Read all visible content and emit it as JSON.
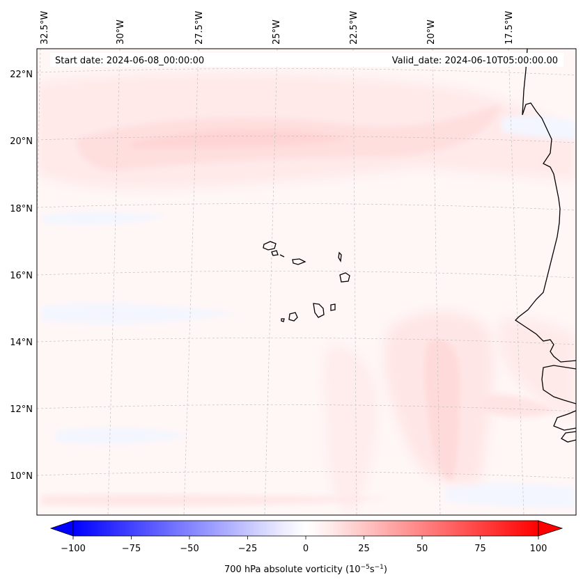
{
  "header": {
    "start_date": "Start date: 2024-06-08_00:00:00",
    "valid_date": "Valid_date: 2024-06-10T05:00:00.00"
  },
  "axes": {
    "lon_ticks": [
      "32.5°W",
      "30°W",
      "27.5°W",
      "25°W",
      "22.5°W",
      "20°W",
      "17.5°W"
    ],
    "lat_ticks": [
      "22°N",
      "20°N",
      "18°N",
      "16°N",
      "14°N",
      "12°N",
      "10°N"
    ]
  },
  "colorbar": {
    "ticks": [
      "−100",
      "−75",
      "−50",
      "−25",
      "0",
      "25",
      "50",
      "75",
      "100"
    ],
    "label_prefix": "700 hPa absolute vorticity (10",
    "label_exp1": "−5",
    "label_mid": "s",
    "label_exp2": "−1",
    "label_suffix": ")",
    "min": -100,
    "max": 100
  },
  "colors": {
    "negative_max": "#0000ff",
    "positive_max": "#ff0000",
    "neutral": "#ffffff"
  },
  "chart_data": {
    "type": "map",
    "variable": "700 hPa absolute vorticity",
    "units": "10^-5 s^-1",
    "lon_range": [
      -33,
      -15.5
    ],
    "lat_range": [
      9,
      22.8
    ],
    "color_range": [
      -100,
      100
    ],
    "features": [
      "Cape Verde Islands",
      "West African coastline"
    ]
  }
}
